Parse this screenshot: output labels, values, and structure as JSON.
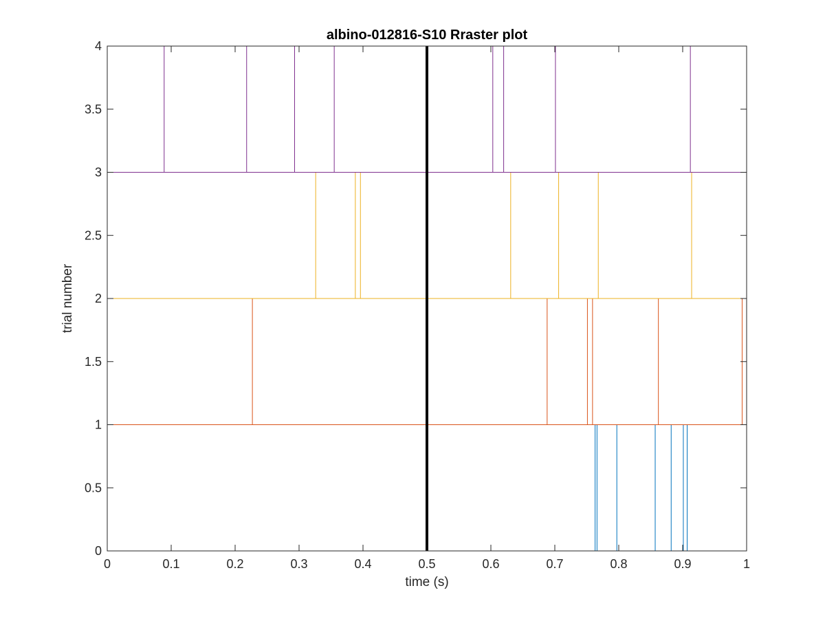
{
  "chart_data": {
    "type": "raster",
    "title": "albino-012816-S10 Rraster plot",
    "xlabel": "time (s)",
    "ylabel": "trial number",
    "xlim": [
      0,
      1
    ],
    "ylim": [
      0,
      4
    ],
    "xticks": [
      0,
      0.1,
      0.2,
      0.3,
      0.4,
      0.5,
      0.6,
      0.7,
      0.8,
      0.9,
      1
    ],
    "xtick_labels": [
      "0",
      "0.1",
      "0.2",
      "0.3",
      "0.4",
      "0.5",
      "0.6",
      "0.7",
      "0.8",
      "0.9",
      "1"
    ],
    "yticks": [
      0,
      0.5,
      1,
      1.5,
      2,
      2.5,
      3,
      3.5,
      4
    ],
    "ytick_labels": [
      "0",
      "0.5",
      "1",
      "1.5",
      "2",
      "2.5",
      "3",
      "3.5",
      "4"
    ],
    "grid": false,
    "box": true,
    "stimulus_line": {
      "x": 0.5,
      "color": "#000000"
    },
    "series": [
      {
        "trial": 0,
        "color": "#0072BD",
        "spikes": [
          0.763,
          0.766,
          0.797,
          0.857,
          0.882,
          0.901,
          0.907
        ]
      },
      {
        "trial": 1,
        "color": "#D95319",
        "spikes": [
          0.227,
          0.688,
          0.751,
          0.759,
          0.862,
          0.993
        ]
      },
      {
        "trial": 2,
        "color": "#EDB120",
        "spikes": [
          0.326,
          0.388,
          0.396,
          0.631,
          0.706,
          0.768,
          0.914
        ]
      },
      {
        "trial": 3,
        "color": "#7E2F8E",
        "spikes": [
          0.089,
          0.218,
          0.293,
          0.355,
          0.603,
          0.62,
          0.701,
          0.912
        ]
      }
    ]
  }
}
